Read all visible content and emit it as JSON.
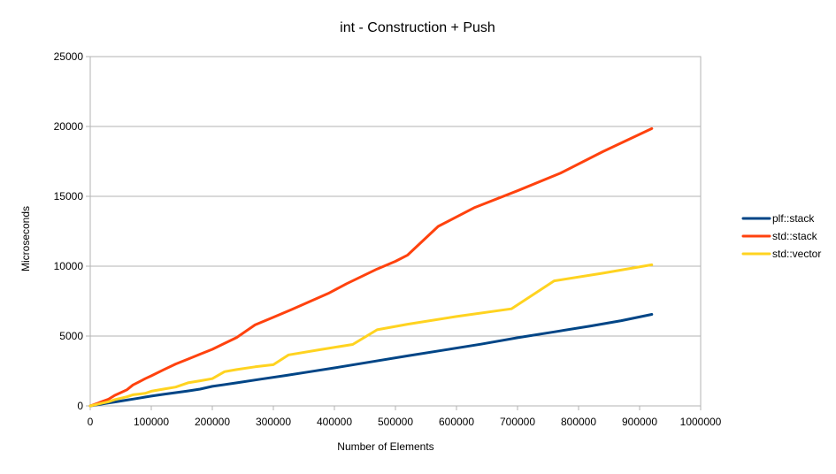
{
  "chart_data": {
    "type": "line",
    "title": "int - Construction + Push",
    "xlabel": "Number of Elements",
    "ylabel": "Microseconds",
    "xlim": [
      0,
      1000000
    ],
    "ylim": [
      0,
      25000
    ],
    "x_ticks": [
      0,
      100000,
      200000,
      300000,
      400000,
      500000,
      600000,
      700000,
      800000,
      900000,
      1000000
    ],
    "y_ticks": [
      0,
      5000,
      10000,
      15000,
      20000,
      25000
    ],
    "grid": "horizontal",
    "legend_position": "right",
    "series": [
      {
        "name": "plf::stack",
        "color": "#004586",
        "points": [
          [
            0,
            0
          ],
          [
            10000,
            70
          ],
          [
            20000,
            140
          ],
          [
            30000,
            210
          ],
          [
            40000,
            280
          ],
          [
            50000,
            350
          ],
          [
            60000,
            420
          ],
          [
            70000,
            490
          ],
          [
            80000,
            560
          ],
          [
            90000,
            630
          ],
          [
            100000,
            700
          ],
          [
            120000,
            830
          ],
          [
            140000,
            950
          ],
          [
            160000,
            1070
          ],
          [
            180000,
            1200
          ],
          [
            200000,
            1400
          ],
          [
            240000,
            1650
          ],
          [
            280000,
            1920
          ],
          [
            320000,
            2180
          ],
          [
            360000,
            2450
          ],
          [
            400000,
            2720
          ],
          [
            460000,
            3150
          ],
          [
            520000,
            3580
          ],
          [
            580000,
            4000
          ],
          [
            640000,
            4420
          ],
          [
            700000,
            4880
          ],
          [
            760000,
            5300
          ],
          [
            820000,
            5720
          ],
          [
            870000,
            6100
          ],
          [
            920000,
            6550
          ]
        ]
      },
      {
        "name": "std::stack",
        "color": "#ff420e",
        "points": [
          [
            0,
            0
          ],
          [
            10000,
            150
          ],
          [
            20000,
            320
          ],
          [
            30000,
            480
          ],
          [
            40000,
            750
          ],
          [
            50000,
            950
          ],
          [
            60000,
            1150
          ],
          [
            70000,
            1500
          ],
          [
            80000,
            1720
          ],
          [
            90000,
            1950
          ],
          [
            100000,
            2150
          ],
          [
            120000,
            2580
          ],
          [
            140000,
            3000
          ],
          [
            160000,
            3350
          ],
          [
            180000,
            3700
          ],
          [
            200000,
            4050
          ],
          [
            240000,
            4900
          ],
          [
            270000,
            5800
          ],
          [
            300000,
            6350
          ],
          [
            330000,
            6900
          ],
          [
            390000,
            8050
          ],
          [
            420000,
            8750
          ],
          [
            470000,
            9800
          ],
          [
            500000,
            10350
          ],
          [
            520000,
            10800
          ],
          [
            570000,
            12850
          ],
          [
            630000,
            14200
          ],
          [
            700000,
            15400
          ],
          [
            770000,
            16650
          ],
          [
            840000,
            18200
          ],
          [
            920000,
            19850
          ]
        ]
      },
      {
        "name": "std::vector",
        "color": "#ffd320",
        "points": [
          [
            0,
            0
          ],
          [
            10000,
            100
          ],
          [
            20000,
            200
          ],
          [
            30000,
            300
          ],
          [
            40000,
            450
          ],
          [
            50000,
            550
          ],
          [
            60000,
            650
          ],
          [
            70000,
            800
          ],
          [
            80000,
            850
          ],
          [
            90000,
            900
          ],
          [
            100000,
            1050
          ],
          [
            120000,
            1200
          ],
          [
            140000,
            1350
          ],
          [
            160000,
            1650
          ],
          [
            180000,
            1800
          ],
          [
            200000,
            1950
          ],
          [
            220000,
            2450
          ],
          [
            240000,
            2600
          ],
          [
            270000,
            2800
          ],
          [
            300000,
            2950
          ],
          [
            325000,
            3650
          ],
          [
            380000,
            4050
          ],
          [
            430000,
            4400
          ],
          [
            470000,
            5450
          ],
          [
            520000,
            5850
          ],
          [
            600000,
            6400
          ],
          [
            690000,
            6950
          ],
          [
            760000,
            8950
          ],
          [
            840000,
            9500
          ],
          [
            920000,
            10100
          ]
        ]
      }
    ]
  }
}
